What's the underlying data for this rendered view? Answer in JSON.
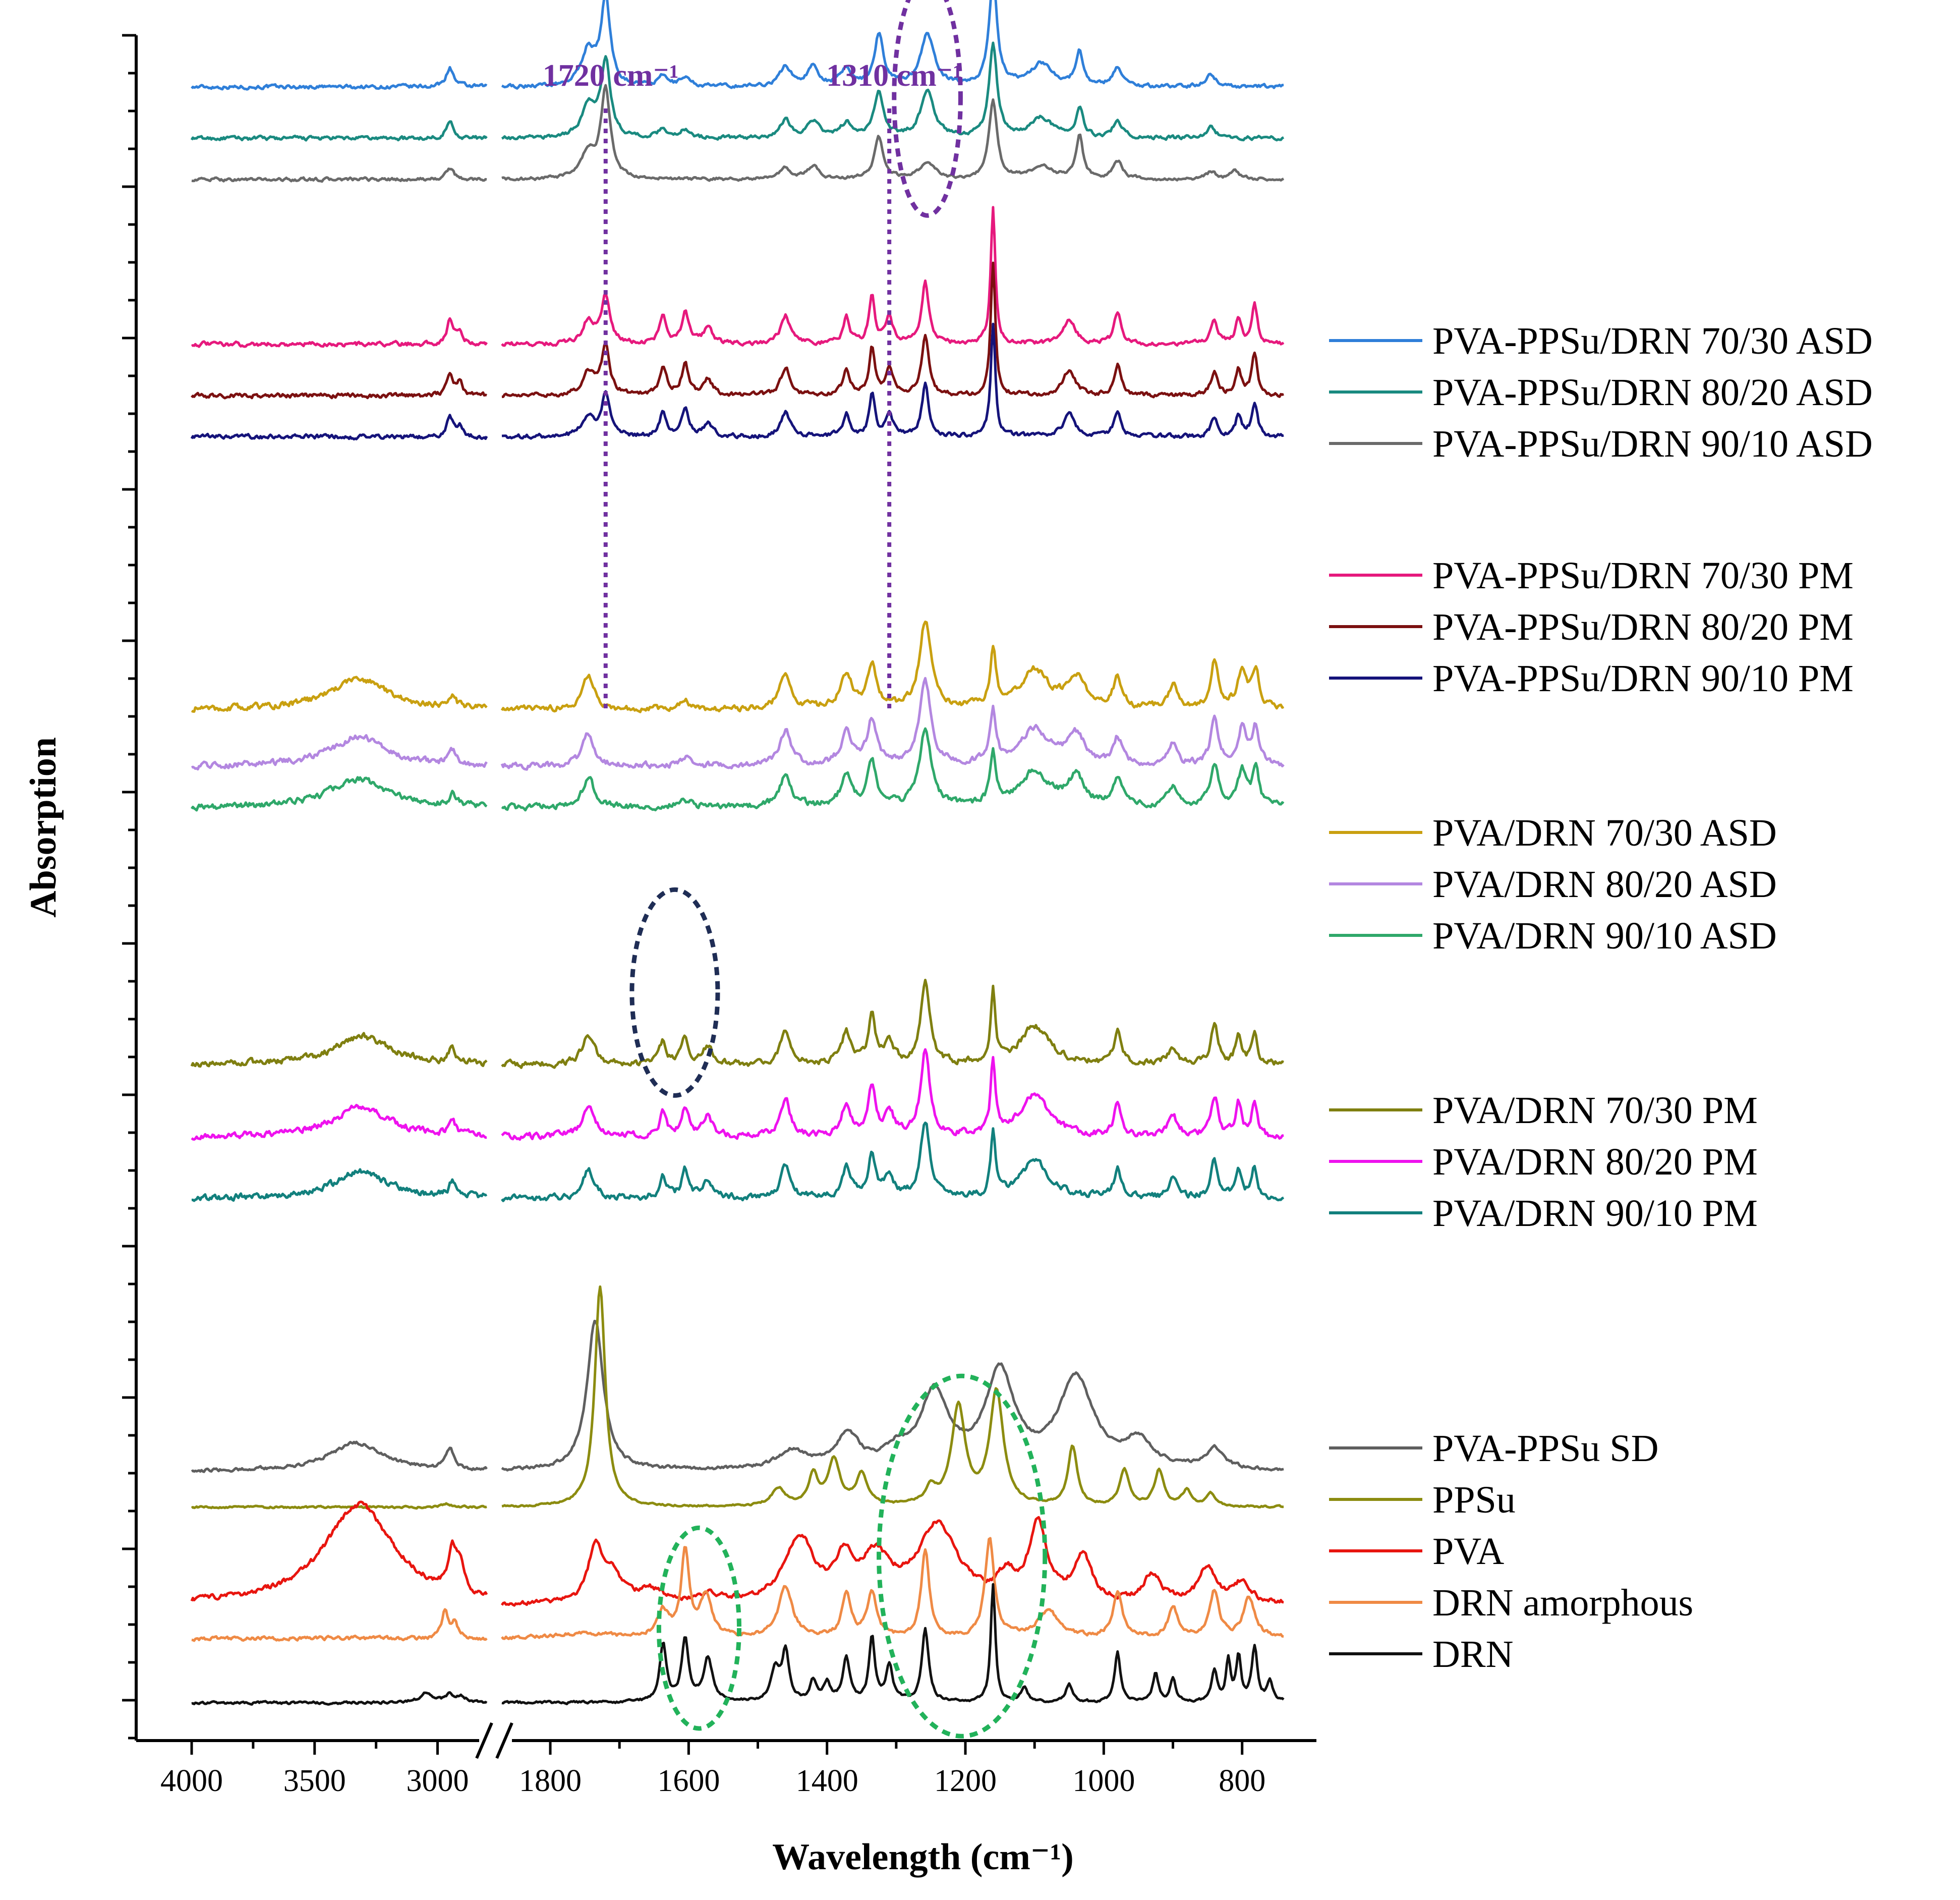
{
  "chart_data": {
    "type": "line",
    "title": "",
    "xlabel": "Wavelength (cm⁻¹)",
    "ylabel": "Absorption",
    "x_axis": {
      "reversed": true,
      "broken": true,
      "segments": [
        {
          "range": [
            4000,
            2800
          ],
          "ticks": [
            4000,
            3500,
            3000
          ]
        },
        {
          "range": [
            1870,
            740
          ],
          "ticks": [
            1800,
            1600,
            1400,
            1200,
            1000,
            800
          ]
        }
      ],
      "tick_labels": [
        "4000",
        "3500",
        "3000",
        "1800",
        "1600",
        "1400",
        "1200",
        "1000",
        "800"
      ]
    },
    "y_axis": {
      "ticks_shown": true,
      "tick_labels": []
    },
    "reference_lines": [
      {
        "x": 1720,
        "label": "1720 cm⁻¹",
        "color": "#7030a0",
        "style": "dotted"
      },
      {
        "x": 1310,
        "label": "1310 cm⁻¹",
        "color": "#7030a0",
        "style": "dotted"
      }
    ],
    "highlight_ellipses": [
      {
        "cx": 1255,
        "cy": 31.2,
        "rx": 48,
        "ry": 2.3,
        "color": "#7030a0"
      },
      {
        "cx": 1620,
        "cy": 13.8,
        "rx": 62,
        "ry": 2.0,
        "color": "#1f2d55"
      },
      {
        "cx": 1585,
        "cy": 1.45,
        "rx": 58,
        "ry": 1.95,
        "color": "#22b25a"
      },
      {
        "cx": 1205,
        "cy": 2.85,
        "rx": 120,
        "ry": 3.5,
        "color": "#22b25a"
      }
    ],
    "series": [
      {
        "name": "PVA-PPSu/DRN 70/30 ASD",
        "color": "#2f7fd9",
        "offset": 31.4,
        "profile": "pps_asd",
        "amp": 1.25,
        "noise": 0.06
      },
      {
        "name": "PVA-PPSu/DRN 80/20 ASD",
        "color": "#1a8a80",
        "offset": 30.4,
        "profile": "pps_asd",
        "amp": 1.1,
        "noise": 0.06
      },
      {
        "name": "PVA-PPSu/DRN 90/10 ASD",
        "color": "#6a6a6a",
        "offset": 29.6,
        "profile": "pps_asd90",
        "amp": 1.0,
        "noise": 0.05
      },
      {
        "name": "PVA-PPSu/DRN 70/30 PM",
        "color": "#e6197d",
        "offset": 26.4,
        "profile": "pps_pm",
        "amp": 1.0,
        "noise": 0.07
      },
      {
        "name": "PVA-PPSu/DRN 80/20 PM",
        "color": "#7b1010",
        "offset": 25.4,
        "profile": "pps_pm",
        "amp": 1.0,
        "noise": 0.07
      },
      {
        "name": "PVA-PPSu/DRN 90/10 PM",
        "color": "#15137a",
        "offset": 24.6,
        "profile": "pps_pm",
        "amp": 0.85,
        "noise": 0.07
      },
      {
        "name": "PVA/DRN 70/30 ASD",
        "color": "#c9a010",
        "offset": 19.3,
        "profile": "pva_asd",
        "amp": 1.0,
        "noise": 0.1
      },
      {
        "name": "PVA/DRN 80/20 ASD",
        "color": "#b387e0",
        "offset": 18.2,
        "profile": "pva_asd",
        "amp": 0.95,
        "noise": 0.1
      },
      {
        "name": "PVA/DRN 90/10 ASD",
        "color": "#2fa86a",
        "offset": 17.4,
        "profile": "pva_asd",
        "amp": 0.9,
        "noise": 0.1
      },
      {
        "name": "PVA/DRN 70/30 PM",
        "color": "#7f7f10",
        "offset": 12.4,
        "profile": "pva_pm",
        "amp": 1.0,
        "noise": 0.1
      },
      {
        "name": "PVA/DRN 80/20 PM",
        "color": "#ee12ee",
        "offset": 11.0,
        "profile": "pva_pm",
        "amp": 1.05,
        "noise": 0.1
      },
      {
        "name": "PVA/DRN 90/10 PM",
        "color": "#12807d",
        "offset": 9.8,
        "profile": "pva_pm",
        "amp": 0.95,
        "noise": 0.1
      },
      {
        "name": "PVA-PPSu SD",
        "color": "#5f5f5f",
        "offset": 4.5,
        "profile": "pvapps_sd",
        "amp": 1.0,
        "noise": 0.05
      },
      {
        "name": "PPSu",
        "color": "#8c8c10",
        "offset": 3.8,
        "profile": "ppsu",
        "amp": 1.0,
        "noise": 0.03
      },
      {
        "name": "PVA",
        "color": "#e8150f",
        "offset": 1.9,
        "profile": "pva",
        "amp": 1.0,
        "noise": 0.08
      },
      {
        "name": "DRN amorphous",
        "color": "#ef8a45",
        "offset": 1.25,
        "profile": "drn_am",
        "amp": 1.0,
        "noise": 0.06
      },
      {
        "name": "DRN",
        "color": "#111111",
        "offset": 0.0,
        "profile": "drn",
        "amp": 1.0,
        "noise": 0.04
      }
    ],
    "legend_groups": [
      [
        "PVA-PPSu/DRN 70/30 ASD",
        "PVA-PPSu/DRN 80/20 ASD",
        "PVA-PPSu/DRN 90/10 ASD"
      ],
      [
        "PVA-PPSu/DRN 70/30 PM",
        "PVA-PPSu/DRN 80/20 PM",
        "PVA-PPSu/DRN 90/10 PM"
      ],
      [
        "PVA/DRN 70/30 ASD",
        "PVA/DRN 80/20 ASD",
        "PVA/DRN 90/10 ASD"
      ],
      [
        "PVA/DRN 70/30 PM",
        "PVA/DRN 80/20 PM",
        "PVA/DRN 90/10 PM"
      ],
      [
        "PVA-PPSu SD",
        "PPSu",
        "PVA",
        "DRN amorphous",
        "DRN"
      ]
    ],
    "legend_position": "right"
  }
}
